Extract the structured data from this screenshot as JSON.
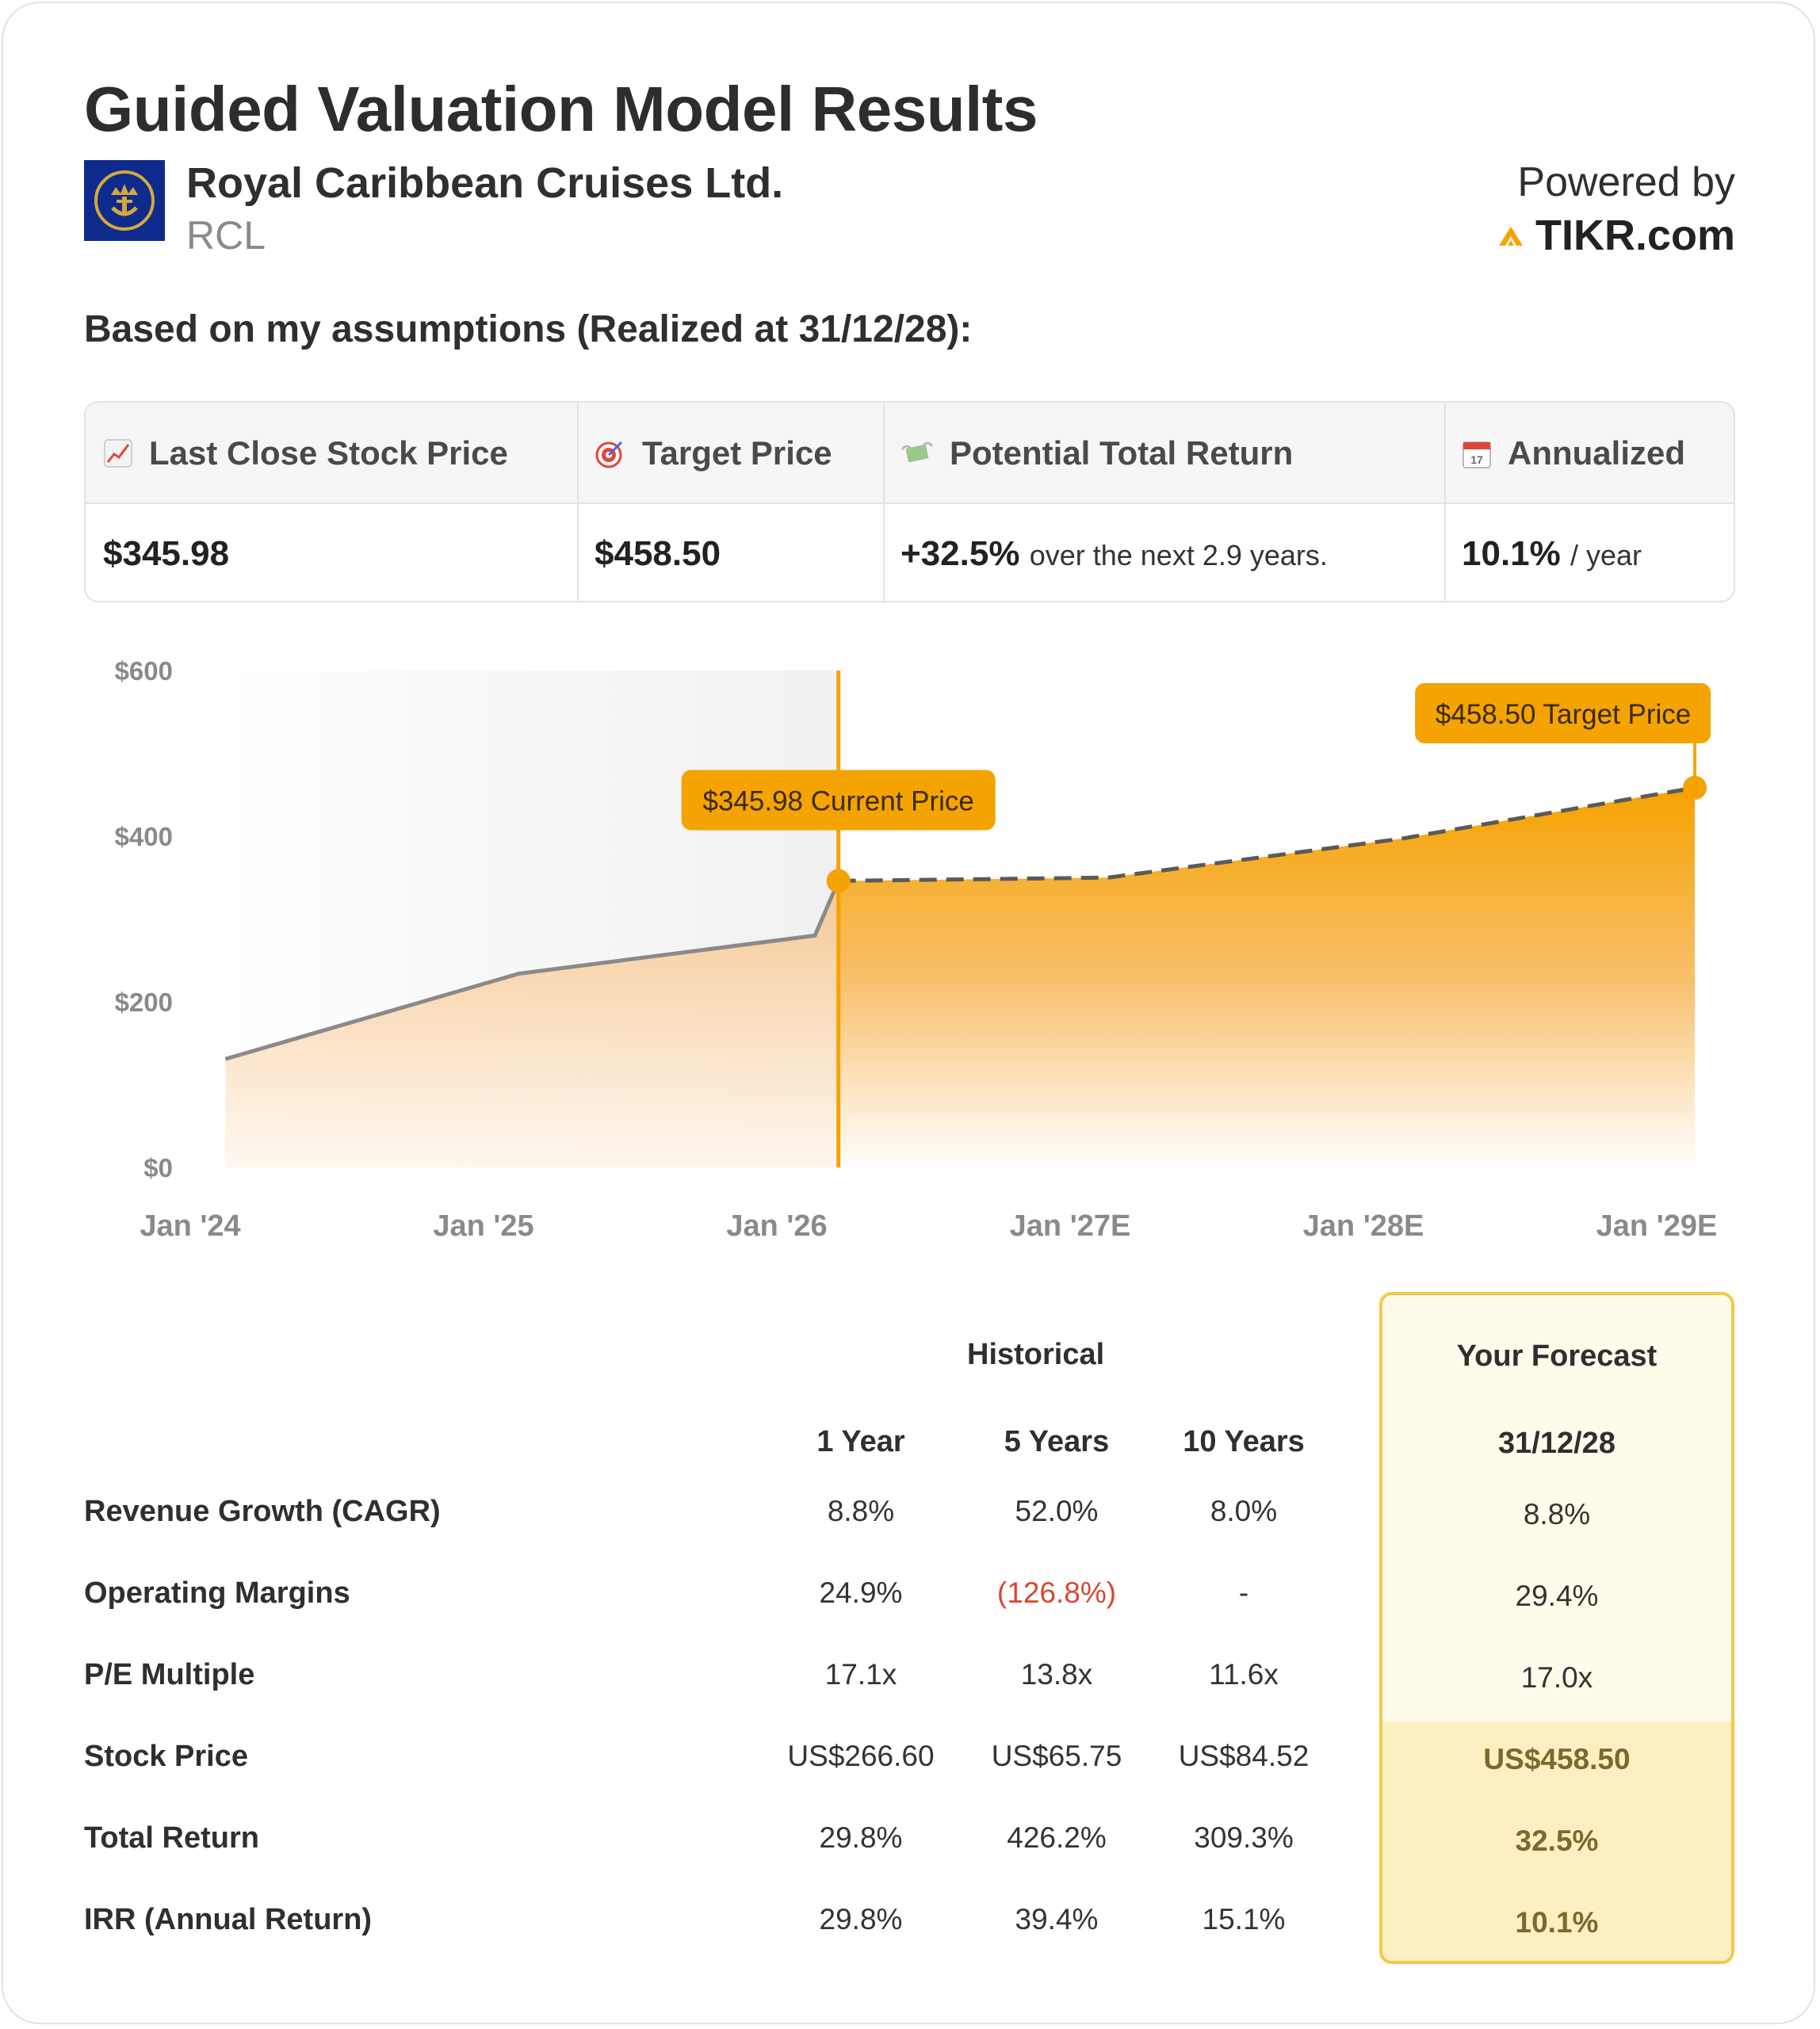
{
  "header": {
    "title": "Guided Valuation Model Results",
    "company": "Royal Caribbean Cruises Ltd.",
    "ticker": "RCL",
    "powered_by": "Powered by",
    "brand": "TIKR.com",
    "assumption_text": "Based on my assumptions (Realized at 31/12/28):"
  },
  "metrics": {
    "last_close": {
      "label": "Last Close Stock Price",
      "icon": "chart-increasing-icon",
      "value": "$345.98"
    },
    "target": {
      "label": "Target Price",
      "icon": "target-icon",
      "value": "$458.50"
    },
    "total_return": {
      "label": "Potential Total Return",
      "icon": "money-wings-icon",
      "value": "+32.5%",
      "suffix": "over the next 2.9 years."
    },
    "annualized": {
      "label": "Annualized",
      "icon": "calendar-icon",
      "value": "10.1%",
      "suffix": "/ year"
    }
  },
  "chart_data": {
    "type": "area",
    "y_ticks": [
      "$600",
      "$400",
      "$200",
      "$0"
    ],
    "ylim": [
      0,
      600
    ],
    "x_ticks": [
      "Jan '24",
      "Jan '25",
      "Jan '26",
      "Jan '27E",
      "Jan '28E",
      "Jan '29E"
    ],
    "historical": [
      {
        "x": 2024.12,
        "y": 131
      },
      {
        "x": 2025.12,
        "y": 234
      },
      {
        "x": 2026.13,
        "y": 280
      },
      {
        "x": 2026.21,
        "y": 345.98
      }
    ],
    "forecast": [
      {
        "x": 2026.21,
        "y": 345.98
      },
      {
        "x": 2027.13,
        "y": 350
      },
      {
        "x": 2028.13,
        "y": 397
      },
      {
        "x": 2029.13,
        "y": 458.5
      }
    ],
    "current_marker_x": 2026.21,
    "annotations": {
      "current": "$345.98 Current Price",
      "target": "$458.50 Target Price"
    },
    "colors": {
      "accent": "#f5a300",
      "line": "#8a8a8a",
      "dash": "#5a5a5a"
    }
  },
  "table": {
    "historical_label": "Historical",
    "forecast_label": "Your Forecast",
    "forecast_date": "31/12/28",
    "columns": [
      "1 Year",
      "5 Years",
      "10 Years"
    ],
    "rows": [
      {
        "label": "Revenue Growth (CAGR)",
        "values": [
          "8.8%",
          "52.0%",
          "8.0%"
        ],
        "forecast": "8.8%"
      },
      {
        "label": "Operating Margins",
        "values": [
          "24.9%",
          "(126.8%)",
          "-"
        ],
        "forecast": "29.4%"
      },
      {
        "label": "P/E Multiple",
        "values": [
          "17.1x",
          "13.8x",
          "11.6x"
        ],
        "forecast": "17.0x"
      },
      {
        "label": "Stock Price",
        "values": [
          "US$266.60",
          "US$65.75",
          "US$84.52"
        ],
        "forecast": "US$458.50"
      },
      {
        "label": "Total Return",
        "values": [
          "29.8%",
          "426.2%",
          "309.3%"
        ],
        "forecast": "32.5%"
      },
      {
        "label": "IRR (Annual Return)",
        "values": [
          "29.8%",
          "39.4%",
          "15.1%"
        ],
        "forecast": "10.1%"
      }
    ]
  }
}
